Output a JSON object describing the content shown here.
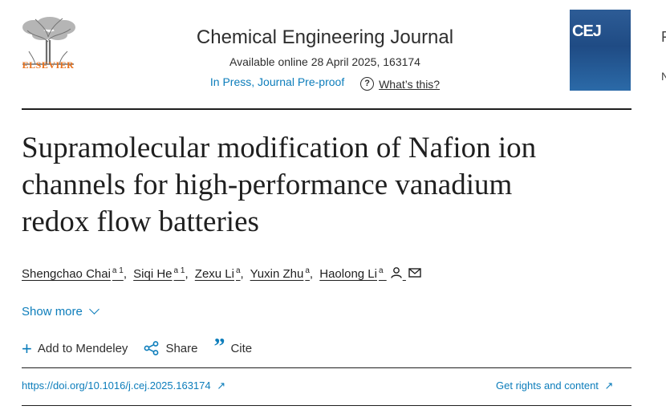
{
  "publisher": {
    "name": "ELSEVIER",
    "logo_icon": "elsevier-tree-icon",
    "brand_color": "#e9711c"
  },
  "journal": {
    "title": "Chemical Engineering Journal",
    "available": "Available online 28 April 2025, 163174",
    "status": "In Press, Journal Pre-proof",
    "help_label": "What’s this?",
    "cover_abbrev": "CEJ"
  },
  "edge": {
    "f": "F",
    "n": "N"
  },
  "article": {
    "title_lines": [
      "Supramolecular modification of Nafion ion",
      "channels for high-performance vanadium",
      "redox flow batteries"
    ],
    "authors": [
      {
        "name": "Shengchao Chai",
        "sup": "a 1"
      },
      {
        "name": "Siqi He",
        "sup": "a 1"
      },
      {
        "name": "Zexu Li",
        "sup": "a"
      },
      {
        "name": "Yuxin Zhu",
        "sup": "a"
      },
      {
        "name": "Haolong Li",
        "sup": "a"
      }
    ],
    "show_more": "Show more"
  },
  "actions": {
    "mendeley": "Add to Mendeley",
    "share": "Share",
    "cite": "Cite"
  },
  "links": {
    "doi": "https://doi.org/10.1016/j.cej.2025.163174",
    "rights": "Get rights and content"
  },
  "colors": {
    "link": "#0c7dbb",
    "text": "#1f1f1f"
  }
}
